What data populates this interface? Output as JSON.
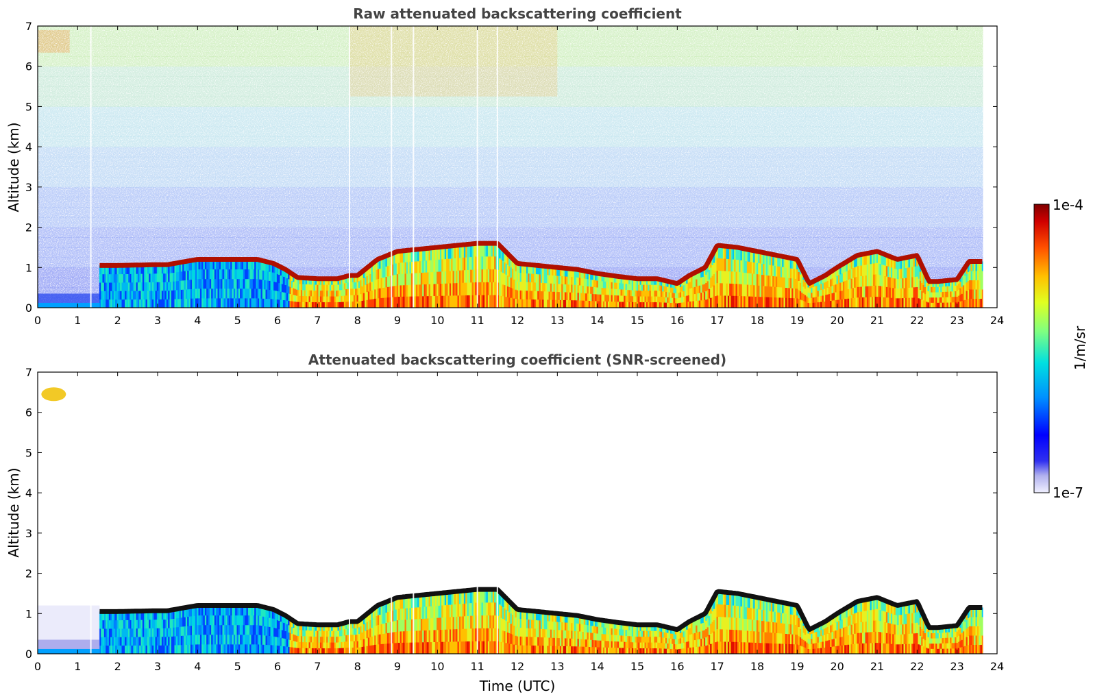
{
  "chart_data": [
    {
      "type": "heatmap",
      "title": "Raw attenuated backscattering coefficient",
      "xlabel": "",
      "ylabel": "Altitude (km)",
      "xlim": [
        0,
        24
      ],
      "ylim": [
        0,
        7
      ],
      "xticks": [
        "0",
        "1",
        "2",
        "3",
        "4",
        "5",
        "6",
        "7",
        "8",
        "9",
        "10",
        "11",
        "12",
        "13",
        "14",
        "15",
        "16",
        "17",
        "18",
        "19",
        "20",
        "21",
        "22",
        "23",
        "24"
      ],
      "yticks": [
        "0",
        "1",
        "2",
        "3",
        "4",
        "5",
        "6",
        "7"
      ],
      "data_end_time": 23.65,
      "noise_threshold_km": 0,
      "cloud_layer": {
        "time": [
          1.55,
          2.0,
          3.0,
          3.25,
          3.7,
          4.0,
          5.0,
          5.5,
          5.9,
          6.2,
          6.5,
          7.0,
          7.5,
          7.8,
          8.0,
          8.5,
          9.0,
          9.5,
          10.0,
          10.5,
          11.0,
          11.5,
          12.0,
          12.5,
          13.0,
          13.5,
          14.0,
          14.5,
          15.0,
          15.5,
          16.0,
          16.3,
          16.7,
          17.0,
          17.5,
          18.0,
          18.5,
          19.0,
          19.3,
          19.7,
          20.0,
          20.5,
          21.0,
          21.5,
          22.0,
          22.3,
          22.5,
          23.0,
          23.3,
          23.5
        ],
        "altitude_km": [
          1.05,
          1.05,
          1.07,
          1.07,
          1.15,
          1.2,
          1.2,
          1.2,
          1.1,
          0.95,
          0.75,
          0.72,
          0.72,
          0.8,
          0.8,
          1.2,
          1.4,
          1.45,
          1.5,
          1.55,
          1.6,
          1.6,
          1.1,
          1.05,
          1.0,
          0.95,
          0.85,
          0.78,
          0.72,
          0.72,
          0.6,
          0.8,
          1.0,
          1.55,
          1.5,
          1.4,
          1.3,
          1.2,
          0.6,
          0.8,
          1.0,
          1.3,
          1.4,
          1.2,
          1.3,
          0.65,
          0.65,
          0.7,
          1.15,
          1.15
        ]
      },
      "colormap": "jet"
    },
    {
      "type": "heatmap",
      "title": "Attenuated backscattering coefficient (SNR-screened)",
      "xlabel": "Time (UTC)",
      "ylabel": "Altitude (km)",
      "xlim": [
        0,
        24
      ],
      "ylim": [
        0,
        7
      ],
      "xticks": [
        "0",
        "1",
        "2",
        "3",
        "4",
        "5",
        "6",
        "7",
        "8",
        "9",
        "10",
        "11",
        "12",
        "13",
        "14",
        "15",
        "16",
        "17",
        "18",
        "19",
        "20",
        "21",
        "22",
        "23",
        "24"
      ],
      "yticks": [
        "0",
        "1",
        "2",
        "3",
        "4",
        "5",
        "6",
        "7"
      ],
      "data_end_time": 23.65,
      "colormap": "jet"
    }
  ],
  "colorbar": {
    "max_label": "1e-4",
    "min_label": "1e-7",
    "unit_label": "1/m/sr",
    "colors": [
      "#f0f0ff",
      "#c8c8f4",
      "#9a9aec",
      "#6464f0",
      "#0000ff",
      "#0050ff",
      "#00a0ff",
      "#00e6e6",
      "#40ffbf",
      "#a0ff60",
      "#e6ff20",
      "#ffd000",
      "#ff8000",
      "#ff2000",
      "#d00000",
      "#800000"
    ]
  }
}
